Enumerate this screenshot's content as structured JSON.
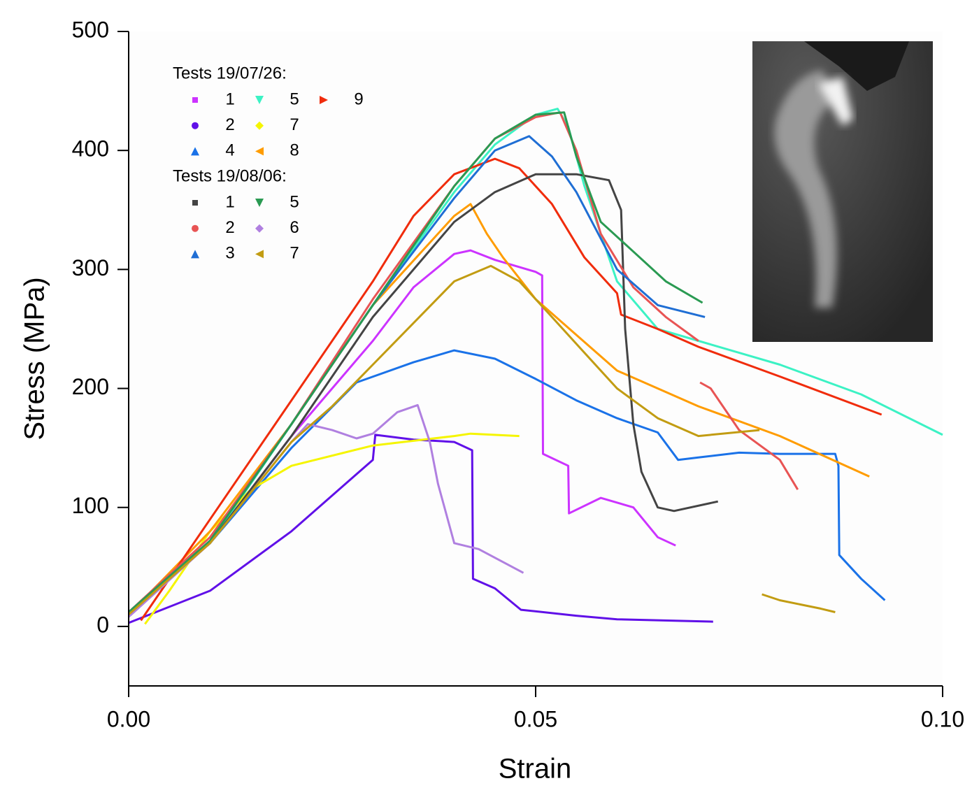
{
  "chart_data": {
    "type": "line",
    "x_label": "Strain",
    "y_label": "Stress (MPa)",
    "xlim": [
      0,
      0.1
    ],
    "ylim": [
      -50,
      500
    ],
    "xticks": [
      {
        "value": 0,
        "label": "0.00"
      },
      {
        "value": 0.05,
        "label": "0.05"
      },
      {
        "value": 0.1,
        "label": "0.10"
      }
    ],
    "yticks": [
      0,
      100,
      200,
      300,
      400,
      500
    ],
    "legend_titles": [
      "Tests 19/07/26:",
      "Tests 19/08/06:"
    ],
    "series": [
      {
        "name": "1",
        "color": "#cc33ff",
        "marker": "square",
        "x": [
          0,
          0.01,
          0.02,
          0.03,
          0.035,
          0.04,
          0.042,
          0.045,
          0.05,
          0.0508,
          0.0509,
          0.054,
          0.0541,
          0.058,
          0.062,
          0.065,
          0.0672
        ],
        "values": [
          10,
          70,
          160,
          240,
          285,
          313,
          316,
          308,
          298,
          295,
          145,
          135,
          95,
          108,
          100,
          75,
          68
        ]
      },
      {
        "name": "2",
        "color": "#6010e8",
        "marker": "circle",
        "x": [
          0,
          0.01,
          0.02,
          0.03,
          0.0303,
          0.035,
          0.04,
          0.0422,
          0.0423,
          0.045,
          0.0482,
          0.055,
          0.06,
          0.0718
        ],
        "values": [
          3,
          30,
          80,
          140,
          161,
          157,
          155,
          148,
          40,
          32,
          14,
          9,
          6,
          4
        ]
      },
      {
        "name": "4",
        "color": "#1a72e8",
        "marker": "triangle-up",
        "x": [
          0,
          0.01,
          0.02,
          0.028,
          0.035,
          0.04,
          0.045,
          0.05,
          0.055,
          0.06,
          0.065,
          0.0675,
          0.07,
          0.075,
          0.08,
          0.0868,
          0.0872,
          0.0873,
          0.09,
          0.0929
        ],
        "values": [
          12,
          70,
          150,
          205,
          222,
          232,
          225,
          208,
          190,
          175,
          163,
          140,
          142,
          146,
          145,
          145,
          135,
          60,
          40,
          22
        ]
      },
      {
        "name": "5",
        "color": "#3cf2c4",
        "marker": "triangle-down",
        "x": [
          0,
          0.01,
          0.02,
          0.03,
          0.04,
          0.045,
          0.05,
          0.0527,
          0.054,
          0.056,
          0.06,
          0.065,
          0.07,
          0.08,
          0.09,
          0.1
        ],
        "values": [
          12,
          70,
          170,
          270,
          365,
          405,
          430,
          435,
          420,
          370,
          290,
          250,
          240,
          220,
          195,
          161
        ]
      },
      {
        "name": "7",
        "color": "#f5f500",
        "marker": "diamond",
        "x": [
          0.002,
          0.005,
          0.01,
          0.015,
          0.02,
          0.03,
          0.04,
          0.042,
          0.048
        ],
        "values": [
          2,
          30,
          80,
          115,
          135,
          152,
          160,
          162,
          160
        ]
      },
      {
        "name": "8",
        "color": "#ff9c00",
        "marker": "triangle-left",
        "x": [
          0,
          0.01,
          0.02,
          0.03,
          0.04,
          0.042,
          0.044,
          0.046,
          0.05,
          0.055,
          0.06,
          0.07,
          0.08,
          0.091
        ],
        "values": [
          10,
          80,
          170,
          270,
          345,
          355,
          330,
          310,
          275,
          245,
          215,
          185,
          160,
          126
        ]
      },
      {
        "name": "9",
        "color": "#f02c0c",
        "marker": "triangle-right",
        "x": [
          0.0015,
          0.01,
          0.02,
          0.03,
          0.035,
          0.04,
          0.045,
          0.048,
          0.052,
          0.056,
          0.06,
          0.0605,
          0.065,
          0.07,
          0.08,
          0.0925
        ],
        "values": [
          5,
          90,
          190,
          290,
          345,
          380,
          393,
          385,
          355,
          310,
          280,
          262,
          250,
          235,
          210,
          178
        ]
      },
      {
        "name": "1",
        "color": "#444444",
        "marker": "square",
        "x": [
          0,
          0.01,
          0.02,
          0.03,
          0.04,
          0.045,
          0.05,
          0.055,
          0.059,
          0.0605,
          0.061,
          0.062,
          0.063,
          0.065,
          0.067,
          0.0724
        ],
        "values": [
          12,
          70,
          160,
          260,
          340,
          365,
          380,
          380,
          375,
          350,
          250,
          170,
          130,
          100,
          97,
          105
        ]
      },
      {
        "name": "2",
        "color": "#e85454",
        "marker": "circle",
        "x": [
          0,
          0.01,
          0.02,
          0.03,
          0.04,
          0.045,
          0.05,
          0.053,
          0.055,
          0.058,
          0.062,
          0.066,
          0.07,
          0.0701,
          0.0702,
          0.0715,
          0.075,
          0.08,
          0.0822
        ],
        "values": [
          12,
          75,
          170,
          275,
          370,
          410,
          428,
          432,
          400,
          330,
          285,
          260,
          240,
          null,
          205,
          200,
          165,
          140,
          115
        ]
      },
      {
        "name": "3",
        "color": "#1f6ed4",
        "marker": "triangle-up",
        "x": [
          0,
          0.01,
          0.02,
          0.03,
          0.04,
          0.045,
          0.0492,
          0.052,
          0.055,
          0.06,
          0.065,
          0.0708
        ],
        "values": [
          12,
          72,
          170,
          270,
          360,
          400,
          412,
          395,
          365,
          300,
          270,
          260
        ]
      },
      {
        "name": "5",
        "color": "#2a9a52",
        "marker": "triangle-down",
        "x": [
          0,
          0.01,
          0.02,
          0.03,
          0.04,
          0.045,
          0.05,
          0.0535,
          0.055,
          0.058,
          0.062,
          0.066,
          0.0705
        ],
        "values": [
          12,
          72,
          170,
          270,
          370,
          410,
          430,
          432,
          395,
          340,
          315,
          290,
          272
        ]
      },
      {
        "name": "6",
        "color": "#b080e0",
        "marker": "diamond",
        "x": [
          0,
          0.01,
          0.02,
          0.022,
          0.025,
          0.028,
          0.03,
          0.033,
          0.0355,
          0.037,
          0.038,
          0.04,
          0.043,
          0.0485
        ],
        "values": [
          8,
          70,
          155,
          170,
          165,
          158,
          162,
          180,
          186,
          155,
          120,
          70,
          65,
          45
        ]
      },
      {
        "name": "7",
        "color": "#c29c12",
        "marker": "triangle-left",
        "x": [
          0,
          0.01,
          0.02,
          0.025,
          0.03,
          0.035,
          0.04,
          0.0445,
          0.048,
          0.052,
          0.056,
          0.06,
          0.065,
          0.07,
          0.0775,
          0.0776,
          0.0778,
          0.08,
          0.085,
          0.0868
        ],
        "values": [
          10,
          70,
          155,
          185,
          220,
          255,
          290,
          303,
          290,
          260,
          230,
          200,
          175,
          160,
          165,
          null,
          27,
          22,
          15,
          12
        ]
      }
    ]
  }
}
